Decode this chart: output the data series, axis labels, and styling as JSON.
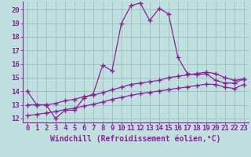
{
  "xlabel": "Windchill (Refroidissement éolien,°C)",
  "background_color": "#c0e0e0",
  "line_color": "#882299",
  "xlim": [
    -0.5,
    23.5
  ],
  "ylim": [
    11.7,
    20.6
  ],
  "yticks": [
    12,
    13,
    14,
    15,
    16,
    17,
    18,
    19,
    20
  ],
  "xticks": [
    0,
    1,
    2,
    3,
    4,
    5,
    6,
    7,
    8,
    9,
    10,
    11,
    12,
    13,
    14,
    15,
    16,
    17,
    18,
    19,
    20,
    21,
    22,
    23
  ],
  "line1_x": [
    0,
    1,
    2,
    3,
    4,
    5,
    6,
    7,
    8,
    9,
    10,
    11,
    12,
    13,
    14,
    15,
    16,
    17,
    18,
    19,
    20,
    21,
    22,
    23
  ],
  "line1_y": [
    14.0,
    13.0,
    13.0,
    12.0,
    12.6,
    12.6,
    13.5,
    13.8,
    15.9,
    15.5,
    19.0,
    20.3,
    20.5,
    19.2,
    20.1,
    19.7,
    16.5,
    15.3,
    15.2,
    15.3,
    14.8,
    14.6,
    14.6,
    14.9
  ],
  "line2_x": [
    0,
    1,
    2,
    3,
    4,
    5,
    6,
    7,
    8,
    9,
    10,
    11,
    12,
    13,
    14,
    15,
    16,
    17,
    18,
    19,
    20,
    21,
    22,
    23
  ],
  "line2_y": [
    13.0,
    13.0,
    13.0,
    13.1,
    13.3,
    13.4,
    13.6,
    13.7,
    13.9,
    14.1,
    14.3,
    14.5,
    14.6,
    14.7,
    14.8,
    15.0,
    15.1,
    15.2,
    15.3,
    15.4,
    15.3,
    15.0,
    14.8,
    14.9
  ],
  "line3_x": [
    0,
    1,
    2,
    3,
    4,
    5,
    6,
    7,
    8,
    9,
    10,
    11,
    12,
    13,
    14,
    15,
    16,
    17,
    18,
    19,
    20,
    21,
    22,
    23
  ],
  "line3_y": [
    12.2,
    12.3,
    12.4,
    12.5,
    12.65,
    12.75,
    12.9,
    13.05,
    13.2,
    13.4,
    13.55,
    13.7,
    13.82,
    13.92,
    14.02,
    14.12,
    14.22,
    14.32,
    14.42,
    14.52,
    14.5,
    14.3,
    14.2,
    14.5
  ],
  "grid_color": "#9fbfbf",
  "tick_fontsize": 6.5,
  "label_fontsize": 7.0
}
